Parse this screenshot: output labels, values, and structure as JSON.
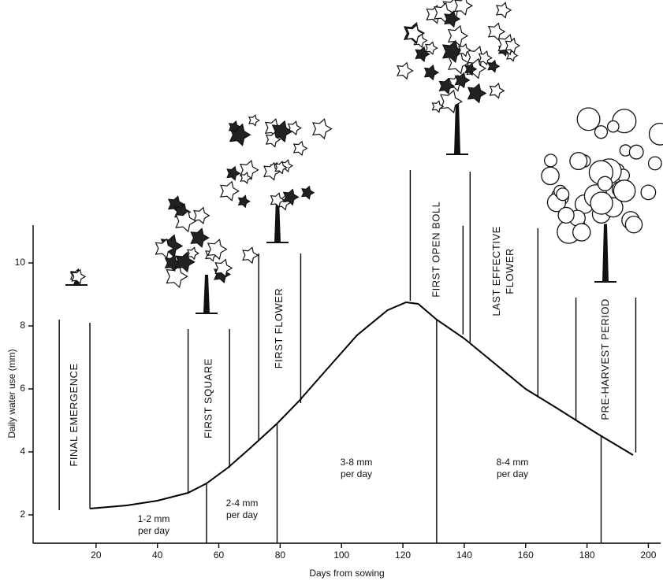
{
  "chart_data": {
    "type": "line",
    "x_label": "Days from sowing",
    "y_label": "Daily water use (mm)",
    "xlim": [
      0,
      204
    ],
    "ylim": [
      1.1,
      11.2
    ],
    "xticks": [
      20,
      40,
      60,
      80,
      100,
      120,
      140,
      160,
      180,
      200
    ],
    "yticks": [
      2,
      4,
      6,
      8,
      10
    ],
    "color": "#000000",
    "x": [
      18,
      30,
      40,
      50,
      56,
      63,
      70,
      79,
      86,
      95,
      105,
      115,
      121,
      125,
      131,
      140,
      150,
      160,
      170,
      183,
      195
    ],
    "values": [
      2.2,
      2.3,
      2.45,
      2.7,
      3.0,
      3.5,
      4.1,
      4.9,
      5.6,
      6.6,
      7.7,
      8.5,
      8.75,
      8.7,
      8.2,
      7.6,
      6.8,
      6.0,
      5.4,
      4.6,
      3.9
    ],
    "stages": [
      {
        "label": [
          "FINAL EMERGENCE"
        ],
        "days": [
          8,
          18
        ],
        "top": [
          8.2,
          8.1
        ],
        "bottom": [
          2.15,
          2.2
        ]
      },
      {
        "label": [
          "FIRST SQUARE"
        ],
        "days": [
          50,
          63.5
        ],
        "top": [
          7.9,
          7.9
        ],
        "bottom": [
          2.7,
          3.5
        ]
      },
      {
        "label": [
          "FIRST FLOWER"
        ],
        "days": [
          73,
          86.7
        ],
        "top": [
          10.3,
          10.3
        ],
        "bottom": [
          4.35,
          5.55
        ]
      },
      {
        "label": [
          "FIRST OPEN BOLL"
        ],
        "days": [
          122.4,
          139.6
        ],
        "top": [
          12.95,
          11.18
        ],
        "bottom": [
          8.8,
          7.73
        ]
      },
      {
        "label": [
          "LAST EFFECTIVE",
          "FLOWER"
        ],
        "days": [
          141.9,
          164
        ],
        "top": [
          12.9,
          11.1
        ],
        "bottom": [
          7.48,
          5.73
        ]
      },
      {
        "label": [
          "PRE-HARVEST PERIOD"
        ],
        "days": [
          176.4,
          195.9
        ],
        "top": [
          8.9,
          8.9
        ],
        "bottom": [
          4.98,
          3.98
        ]
      }
    ],
    "dividers": [
      56,
      79,
      131,
      184.6
    ],
    "rate_labels": [
      [
        "1-2 mm",
        "per day"
      ],
      [
        "2-4 mm",
        "per day"
      ],
      [
        "3-8 mm",
        "per day"
      ],
      [
        "8-4 mm",
        "per day"
      ]
    ]
  }
}
